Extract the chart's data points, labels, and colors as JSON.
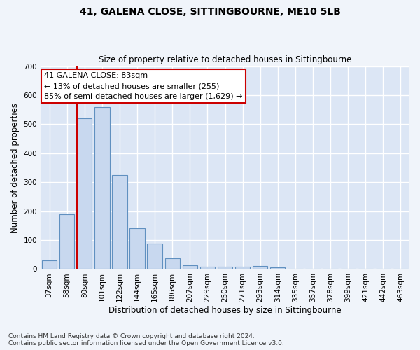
{
  "title": "41, GALENA CLOSE, SITTINGBOURNE, ME10 5LB",
  "subtitle": "Size of property relative to detached houses in Sittingbourne",
  "xlabel": "Distribution of detached houses by size in Sittingbourne",
  "ylabel": "Number of detached properties",
  "categories": [
    "37sqm",
    "58sqm",
    "80sqm",
    "101sqm",
    "122sqm",
    "144sqm",
    "165sqm",
    "186sqm",
    "207sqm",
    "229sqm",
    "250sqm",
    "271sqm",
    "293sqm",
    "314sqm",
    "335sqm",
    "357sqm",
    "378sqm",
    "399sqm",
    "421sqm",
    "442sqm",
    "463sqm"
  ],
  "values": [
    30,
    190,
    520,
    560,
    325,
    140,
    88,
    38,
    12,
    8,
    8,
    8,
    10,
    5,
    0,
    0,
    0,
    0,
    0,
    0,
    0
  ],
  "bar_color": "#c8d8ef",
  "bar_edge_color": "#6090c0",
  "property_line_color": "#cc0000",
  "annotation_text": "41 GALENA CLOSE: 83sqm\n← 13% of detached houses are smaller (255)\n85% of semi-detached houses are larger (1,629) →",
  "annotation_box_color": "#ffffff",
  "annotation_box_edge_color": "#cc0000",
  "ylim": [
    0,
    700
  ],
  "yticks": [
    0,
    100,
    200,
    300,
    400,
    500,
    600,
    700
  ],
  "footer": "Contains HM Land Registry data © Crown copyright and database right 2024.\nContains public sector information licensed under the Open Government Licence v3.0.",
  "bg_color": "#f0f4fa",
  "plot_bg_color": "#dce6f5",
  "grid_color": "#ffffff"
}
